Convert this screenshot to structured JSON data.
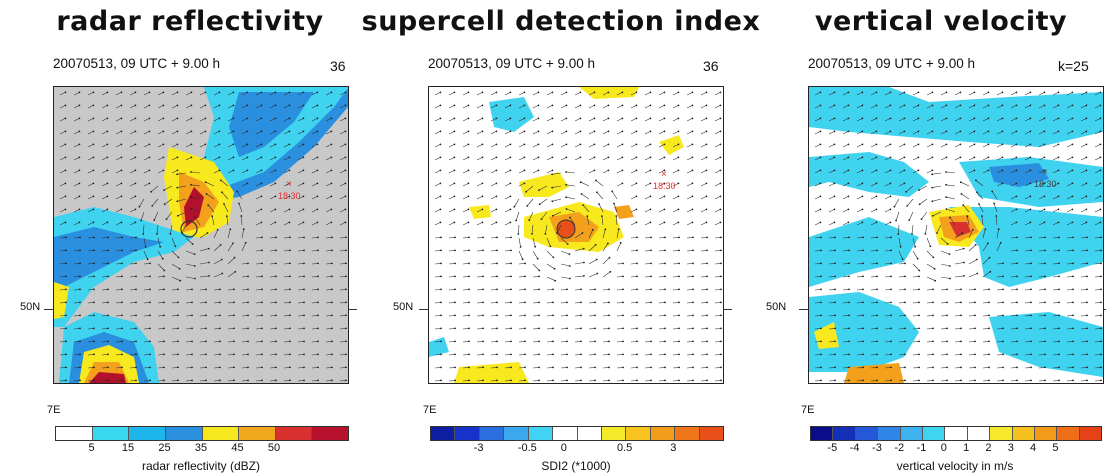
{
  "panels": [
    {
      "title": "radar reflectivity",
      "timestamp": "20070513, 09 UTC + 9.00 h",
      "corner_label": "36",
      "lat_label": "50N",
      "lon_label": "7E",
      "marker_label": "18:30",
      "colorbar": {
        "colors": [
          "#ffffff",
          "#38d8ee",
          "#1eb6ea",
          "#2b8fe0",
          "#f5e81e",
          "#f0a81c",
          "#d93030",
          "#b8112e"
        ],
        "labels": [
          "5",
          "15",
          "25",
          "35",
          "45",
          "50"
        ],
        "title": "radar reflectivity (dBZ)"
      }
    },
    {
      "title": "supercell detection index",
      "timestamp": "20070513, 09 UTC + 9.00 h",
      "corner_label": "36",
      "lat_label": "50N",
      "lon_label": "7E",
      "marker_label": "18:30",
      "colorbar": {
        "colors": [
          "#0d1fa0",
          "#1632c8",
          "#2b6ee0",
          "#3ba8ee",
          "#41d3f3",
          "#ffffff",
          "#ffffff",
          "#f5ea2a",
          "#f7c41f",
          "#f39d1c",
          "#ef7719",
          "#e8501a"
        ],
        "labels": [
          "-3",
          "-0.5",
          "0",
          "0.5",
          "3"
        ],
        "title": "SDI2 (*1000)"
      }
    },
    {
      "title": "vertical velocity",
      "timestamp": "20070513, 09 UTC + 9.00 h",
      "corner_label": "k=25",
      "lat_label": "50N",
      "lon_label": "7E",
      "marker_label": "18:30",
      "colorbar": {
        "colors": [
          "#0a0c8a",
          "#1430b8",
          "#2458d8",
          "#2f86e6",
          "#3eb2ef",
          "#3fd5f2",
          "#ffffff",
          "#ffffff",
          "#f6e82a",
          "#f5c11f",
          "#f39a1b",
          "#ef6e18",
          "#e54217"
        ],
        "labels": [
          "-5",
          "-4",
          "-3",
          "-2",
          "-1",
          "0",
          "1",
          "2",
          "3",
          "4",
          "5"
        ],
        "title": "vertical velocity in m/s"
      }
    }
  ],
  "colors": {
    "land_gray": "#c8c8c8",
    "cyan": "#3fd3f0",
    "blue": "#2b8fe0",
    "yellow": "#f7e91d",
    "orange": "#f3a11c",
    "red": "#d8312f",
    "darkred": "#b3102c",
    "marker_red": "#e03030"
  }
}
